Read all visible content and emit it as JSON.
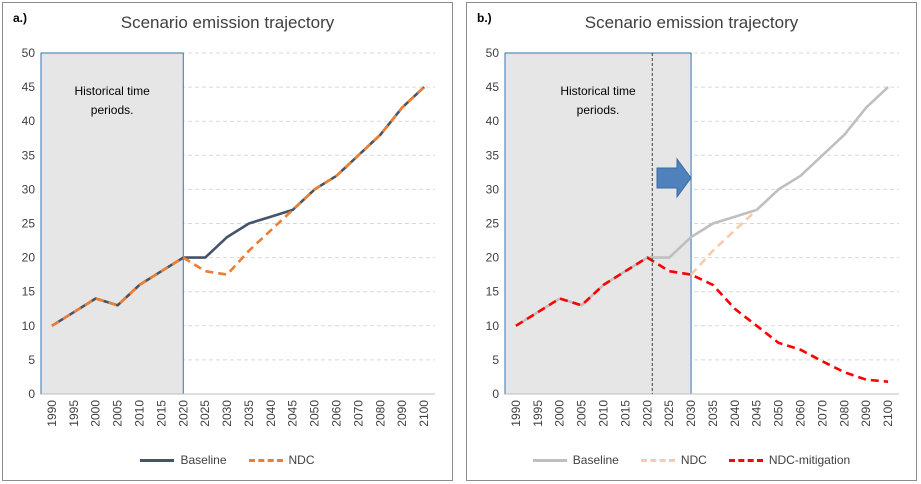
{
  "chart_data": [
    {
      "type": "line",
      "panel_label": "a.)",
      "title": "Scenario emission trajectory",
      "categories": [
        "1990",
        "1995",
        "2000",
        "2005",
        "2010",
        "2015",
        "2020",
        "2025",
        "2030",
        "2035",
        "2040",
        "2045",
        "2050",
        "2060",
        "2070",
        "2080",
        "2090",
        "2100"
      ],
      "ylim": [
        0,
        50
      ],
      "yticks": [
        0,
        5,
        10,
        15,
        20,
        25,
        30,
        35,
        40,
        45,
        50
      ],
      "grid": true,
      "legend": "bottom",
      "annotation": "Historical time periods.",
      "shaded_period": [
        "1990",
        "2020"
      ],
      "series": [
        {
          "name": "Baseline",
          "color": "#44546a",
          "style": "solid",
          "values": [
            10,
            12,
            14,
            13,
            16,
            18,
            20,
            20,
            23,
            25,
            26,
            27,
            30,
            32,
            35,
            38,
            42,
            45
          ]
        },
        {
          "name": "NDC",
          "color": "#ed7d31",
          "style": "dashed",
          "values": [
            10,
            12,
            14,
            13,
            16,
            18,
            20,
            18,
            17.5,
            21,
            24,
            27,
            30,
            32,
            35,
            38,
            42,
            45
          ]
        }
      ]
    },
    {
      "type": "line",
      "panel_label": "b.)",
      "title": "Scenario emission trajectory",
      "categories": [
        "1990",
        "1995",
        "2000",
        "2005",
        "2010",
        "2015",
        "2020",
        "2025",
        "2030",
        "2035",
        "2040",
        "2045",
        "2050",
        "2060",
        "2070",
        "2080",
        "2090",
        "2100"
      ],
      "ylim": [
        0,
        50
      ],
      "yticks": [
        0,
        5,
        10,
        15,
        20,
        25,
        30,
        35,
        40,
        45,
        50
      ],
      "grid": true,
      "legend": "bottom",
      "annotation": "Historical time periods.",
      "shaded_period": [
        "1990",
        "2030"
      ],
      "series": [
        {
          "name": "Baseline",
          "color": "#bfbfbf",
          "style": "solid",
          "values": [
            10,
            12,
            14,
            13,
            16,
            18,
            20,
            20,
            23,
            25,
            26,
            27,
            30,
            32,
            35,
            38,
            42,
            45
          ]
        },
        {
          "name": "NDC",
          "color": "#f8cbad",
          "style": "dashed",
          "values": [
            null,
            null,
            null,
            null,
            null,
            null,
            null,
            null,
            17.5,
            21,
            24,
            27,
            null,
            null,
            null,
            null,
            null,
            null
          ]
        },
        {
          "name": "NDC-mitigation",
          "color": "#ff0000",
          "style": "dashed",
          "values": [
            10,
            12,
            14,
            13,
            16,
            18,
            20,
            18,
            17.5,
            16,
            12.5,
            10,
            7.5,
            6.5,
            4.8,
            3.2,
            2.1,
            1.8
          ]
        }
      ]
    }
  ],
  "legend_labels": {
    "a": [
      "Baseline",
      "NDC"
    ],
    "b": [
      "Baseline",
      "NDC",
      "NDC-mitigation"
    ]
  }
}
